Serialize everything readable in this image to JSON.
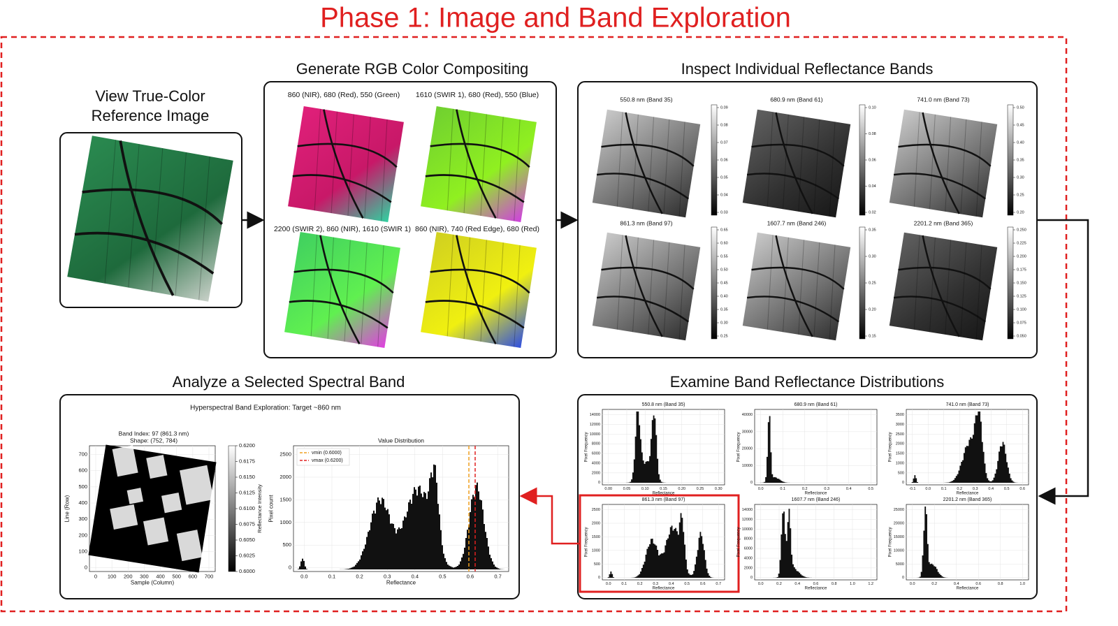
{
  "title": "Phase 1: Image and Band Exploration",
  "reference": {
    "title_lines": [
      "View True-Color",
      "Reference Image"
    ]
  },
  "composites": {
    "title": "Generate RGB Color Compositing",
    "items": [
      "860 (NIR), 680 (Red), 550 (Green)",
      "1610 (SWIR 1), 680 (Red), 550 (Blue)",
      "2200 (SWIR 2), 860 (NIR), 1610 (SWIR 1)",
      "860 (NIR), 740 (Red Edge), 680 (Red)"
    ]
  },
  "bands": {
    "title": "Inspect Individual Reflectance Bands",
    "items": [
      {
        "label": "550.8 nm (Band 35)",
        "ticks": [
          "0.09",
          "0.08",
          "0.07",
          "0.06",
          "0.05",
          "0.04",
          "0.03"
        ]
      },
      {
        "label": "680.9 nm (Band 61)",
        "ticks": [
          "0.10",
          "0.08",
          "0.06",
          "0.04",
          "0.02"
        ]
      },
      {
        "label": "741.0 nm (Band 73)",
        "ticks": [
          "0.50",
          "0.45",
          "0.40",
          "0.35",
          "0.30",
          "0.25",
          "0.20"
        ]
      },
      {
        "label": "861.3 nm (Band 97)",
        "ticks": [
          "0.65",
          "0.60",
          "0.55",
          "0.50",
          "0.45",
          "0.40",
          "0.35",
          "0.30",
          "0.25"
        ]
      },
      {
        "label": "1607.7 nm (Band 246)",
        "ticks": [
          "0.35",
          "0.30",
          "0.25",
          "0.20",
          "0.15"
        ]
      },
      {
        "label": "2201.2 nm (Band 365)",
        "ticks": [
          "0.250",
          "0.225",
          "0.200",
          "0.175",
          "0.150",
          "0.125",
          "0.100",
          "0.075",
          "0.050"
        ]
      }
    ]
  },
  "distributions": {
    "title": "Examine Band Reflectance Distributions",
    "x_label": "Reflectance",
    "y_label": "Pixel Frequency",
    "items": [
      {
        "label": "550.8 nm (Band 35)",
        "xticks": [
          "0.00",
          "0.05",
          "0.10",
          "0.15",
          "0.20",
          "0.25",
          "0.30"
        ],
        "yticks": [
          "0",
          "2000",
          "4000",
          "6000",
          "8000",
          "10000",
          "12000",
          "14000"
        ]
      },
      {
        "label": "680.9 nm (Band 61)",
        "xticks": [
          "0.0",
          "0.1",
          "0.2",
          "0.3",
          "0.4",
          "0.5"
        ],
        "yticks": [
          "0",
          "10000",
          "20000",
          "30000",
          "40000"
        ]
      },
      {
        "label": "741.0 nm (Band 73)",
        "xticks": [
          "-0.1",
          "0.0",
          "0.1",
          "0.2",
          "0.3",
          "0.4",
          "0.5",
          "0.6"
        ],
        "yticks": [
          "0",
          "500",
          "1000",
          "1500",
          "2000",
          "2500",
          "3000",
          "3500"
        ]
      },
      {
        "label": "861.3 nm (Band 97)",
        "xticks": [
          "0.0",
          "0.1",
          "0.2",
          "0.3",
          "0.4",
          "0.5",
          "0.6",
          "0.7"
        ],
        "yticks": [
          "0",
          "500",
          "1000",
          "1500",
          "2000",
          "2500"
        ]
      },
      {
        "label": "1607.7 nm (Band 246)",
        "xticks": [
          "0.0",
          "0.2",
          "0.4",
          "0.6",
          "0.8",
          "1.0",
          "1.2"
        ],
        "yticks": [
          "0",
          "2000",
          "4000",
          "6000",
          "8000",
          "10000",
          "12000",
          "14000"
        ]
      },
      {
        "label": "2201.2 nm (Band 365)",
        "xticks": [
          "0.0",
          "0.2",
          "0.4",
          "0.6",
          "0.8",
          "1.0"
        ],
        "yticks": [
          "0",
          "5000",
          "10000",
          "15000",
          "20000",
          "25000"
        ]
      }
    ]
  },
  "analysis": {
    "title": "Analyze a Selected Spectral Band",
    "main_title": "Hyperspectral Band Exploration: Target ~860 nm",
    "image": {
      "title_lines": [
        "Band Index: 97 (861.3 nm)",
        "Shape: (752, 784)"
      ],
      "x_label": "Sample (Column)",
      "y_label": "Line (Row)",
      "xticks": [
        "0",
        "100",
        "200",
        "300",
        "400",
        "500",
        "600",
        "700"
      ],
      "yticks": [
        "0",
        "100",
        "200",
        "300",
        "400",
        "500",
        "600",
        "700"
      ],
      "colorbar_label": "Reflectance Intensity",
      "colorbar_ticks": [
        "0.6200",
        "0.6175",
        "0.6150",
        "0.6125",
        "0.6100",
        "0.6075",
        "0.6050",
        "0.6025",
        "0.6000"
      ]
    },
    "histogram": {
      "title": "Value Distribution",
      "x_label": "Reflectance",
      "y_label": "Pixel count",
      "xticks": [
        "0.0",
        "0.1",
        "0.2",
        "0.3",
        "0.4",
        "0.5",
        "0.6",
        "0.7"
      ],
      "yticks": [
        "0",
        "500",
        "1000",
        "1500",
        "2000",
        "2500"
      ],
      "legend": [
        "vmin (0.6000)",
        "vmax (0.6200)"
      ]
    }
  }
}
